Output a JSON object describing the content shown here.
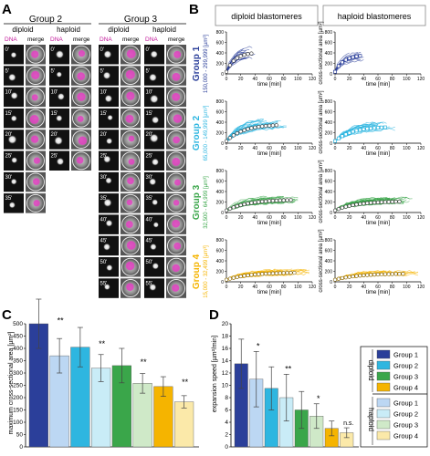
{
  "panel_letters": {
    "a": "A",
    "b": "B",
    "c": "C",
    "d": "D"
  },
  "panel_a": {
    "group2": "Group 2",
    "group3": "Group 3",
    "diploid": "diploid",
    "haploid": "haploid",
    "dna": "DNA",
    "merge": "merge",
    "times_group2_diploid": [
      "0'",
      "5'",
      "10'",
      "15'",
      "20'",
      "25'",
      "30'",
      "35'"
    ],
    "times_group2_haploid": [
      "0'",
      "5'",
      "10'",
      "15'",
      "20'",
      "25'"
    ],
    "times_group3_diploid": [
      "0'",
      "5'",
      "10'",
      "15'",
      "20'",
      "25'",
      "30'",
      "35'",
      "40'",
      "45'",
      "50'",
      "55'"
    ],
    "times_group3_haploid": [
      "0'",
      "5'",
      "10'",
      "15'",
      "20'",
      "25'",
      "30'",
      "35'",
      "40'",
      "45'",
      "50'",
      "55'"
    ]
  },
  "panel_b": {
    "col_diploid": "diploid blastomeres",
    "col_haploid": "haploid blastomeres",
    "ylabel_right": "cross-sectional area [µm²]",
    "xlabel": "time [min]",
    "xticks": [
      "0",
      "20",
      "40",
      "60",
      "80",
      "100",
      "120"
    ],
    "yticks": [
      "0",
      "100",
      "200",
      "300",
      "400",
      "500",
      "600",
      "700",
      "800"
    ],
    "groups": [
      {
        "name": "Group 1",
        "range": "150,000 - 299,999 [µm³]",
        "color": "#2b3f9a"
      },
      {
        "name": "Group 2",
        "range": "65,000 - 149,999 [µm³]",
        "color": "#2eb6e0"
      },
      {
        "name": "Group 3",
        "range": "32,500 - 64,999 [µm³]",
        "color": "#3aa64a"
      },
      {
        "name": "Group 4",
        "range": "15,000 - 32,499 [µm³]",
        "color": "#f5b400"
      }
    ]
  },
  "panel_c": {
    "ylabel": "maximum cross-sectional area [µm²]",
    "yticks": [
      "0",
      "50",
      "100",
      "150",
      "200",
      "250",
      "300",
      "350",
      "400",
      "450",
      "500"
    ],
    "sig": [
      "**",
      "**",
      "**",
      "**"
    ]
  },
  "panel_d": {
    "ylabel": "expansion speed [µm²/min]",
    "yticks": [
      "0",
      "2",
      "4",
      "6",
      "8",
      "10",
      "12",
      "14",
      "16",
      "18",
      "20"
    ],
    "sig": [
      "*",
      "**",
      "*",
      "n.s."
    ],
    "legend_diploid": "diploid",
    "legend_haploid": "haploid",
    "legend_labels": [
      "Group 1",
      "Group 2",
      "Group 3",
      "Group 4"
    ],
    "legend_colors_diploid": [
      "#2b3f9a",
      "#2eb6e0",
      "#3aa64a",
      "#f5b400"
    ],
    "legend_colors_haploid": [
      "#bcd7f3",
      "#c9ecf7",
      "#cfe9c8",
      "#fbe9a9"
    ]
  },
  "chart_data": [
    {
      "type": "bar",
      "panel": "C",
      "ylabel": "maximum cross-sectional area [µm²]",
      "ylim": [
        0,
        500
      ],
      "categories": [
        "Group 1",
        "Group 2",
        "Group 3",
        "Group 4"
      ],
      "series": [
        {
          "values": [
            500,
            405,
            330,
            245
          ],
          "errors": [
            100,
            80,
            70,
            40
          ],
          "color": "#2b3f9a"
        },
        {
          "values": [
            370,
            320,
            258,
            183
          ],
          "errors": [
            70,
            55,
            40,
            25
          ],
          "color": "#bcd7f3"
        }
      ]
    },
    {
      "type": "bar",
      "panel": "D",
      "ylabel": "expansion speed [µm²/min]",
      "ylim": [
        0,
        20
      ],
      "categories": [
        "Group 1",
        "Group 2",
        "Group 3",
        "Group 4"
      ],
      "series": [
        {
          "name": "diploid",
          "values": [
            13.5,
            9.5,
            6,
            3
          ],
          "errors": [
            4,
            3.5,
            3,
            1.2
          ],
          "color": "#2b3f9a"
        },
        {
          "name": "haploid",
          "values": [
            11,
            8,
            5,
            2.3
          ],
          "errors": [
            4.5,
            3.8,
            2,
            0.8
          ],
          "color": "#bcd7f3"
        }
      ]
    }
  ]
}
